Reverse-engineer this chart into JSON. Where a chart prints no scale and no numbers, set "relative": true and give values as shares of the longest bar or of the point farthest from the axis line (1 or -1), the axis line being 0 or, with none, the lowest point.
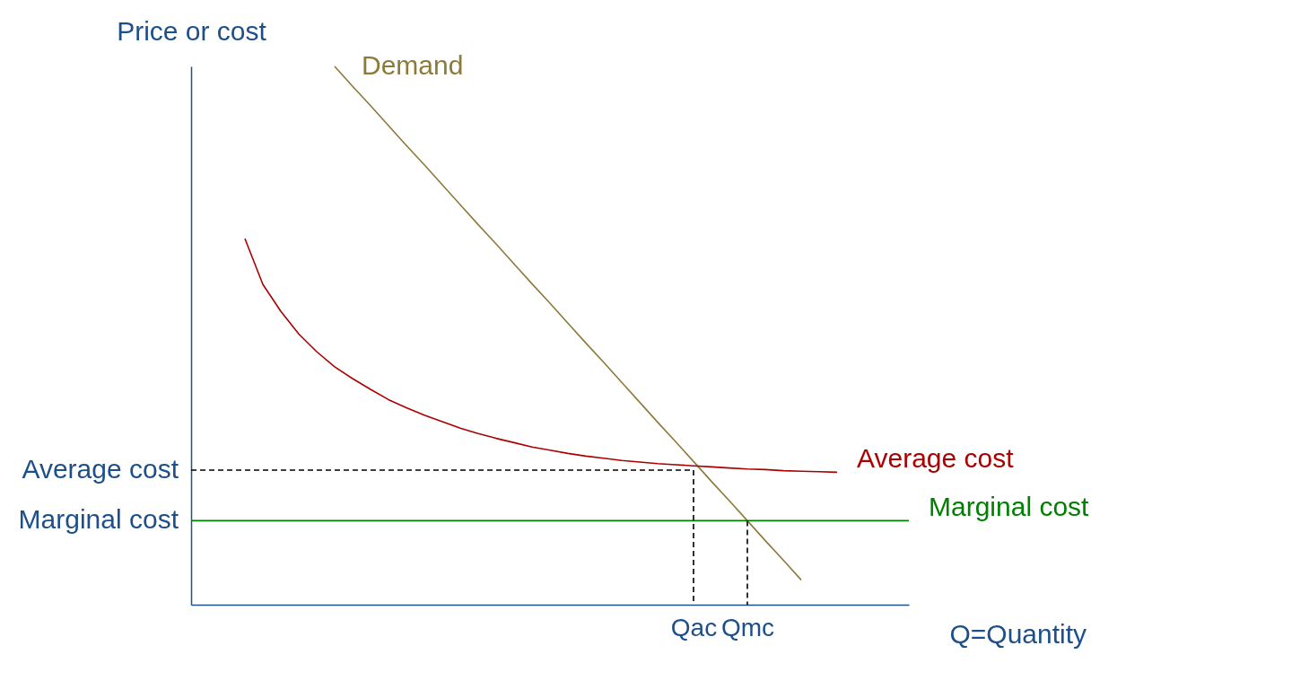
{
  "chart_data": {
    "type": "line",
    "relative": true,
    "xlabel": "Q=Quantity",
    "ylabel": "Price or cost",
    "tick_labels": "x",
    "categories": [
      null,
      null,
      null,
      null,
      null,
      null,
      null,
      null,
      null,
      null,
      null,
      null,
      null,
      null,
      null,
      null,
      null,
      null,
      null,
      null,
      null,
      null,
      null,
      null,
      null,
      null,
      null,
      null,
      "Qac",
      null,
      null,
      "Qmc",
      null,
      null,
      null,
      null,
      null,
      null,
      null,
      null,
      null
    ],
    "series": [
      {
        "name": "Demand",
        "color": "#8b7a3a",
        "values": [
          null,
          null,
          null,
          null,
          null,
          null,
          null,
          null,
          1.0,
          0.963,
          0.927,
          0.89,
          0.853,
          0.817,
          0.78,
          0.743,
          0.706,
          0.67,
          0.633,
          0.596,
          0.56,
          0.523,
          0.486,
          0.45,
          0.413,
          0.376,
          0.339,
          0.303,
          0.266,
          0.229,
          0.193,
          0.156,
          0.119,
          0.083,
          0.046,
          null,
          null,
          null,
          null,
          null,
          null
        ]
      },
      {
        "name": "Average cost",
        "color": "#aa0000",
        "values": [
          null,
          null,
          null,
          0.68,
          0.595,
          0.545,
          0.503,
          0.47,
          0.442,
          0.42,
          0.4,
          0.381,
          0.366,
          0.352,
          0.34,
          0.328,
          0.318,
          0.309,
          0.301,
          0.293,
          0.287,
          0.281,
          0.276,
          0.272,
          0.268,
          0.265,
          0.262,
          0.26,
          0.258,
          0.256,
          0.254,
          0.252,
          0.251,
          0.249,
          0.248,
          0.247,
          0.246,
          null,
          null,
          null,
          null
        ]
      },
      {
        "name": "Marginal cost",
        "color": "#008000",
        "values": [
          0.156,
          0.156,
          0.156,
          0.156,
          0.156,
          0.156,
          0.156,
          0.156,
          0.156,
          0.156,
          0.156,
          0.156,
          0.156,
          0.156,
          0.156,
          0.156,
          0.156,
          0.156,
          0.156,
          0.156,
          0.156,
          0.156,
          0.156,
          0.156,
          0.156,
          0.156,
          0.156,
          0.156,
          0.156,
          0.156,
          0.156,
          0.156,
          0.156,
          0.156,
          0.156,
          0.156,
          0.156,
          0.156,
          0.156,
          0.156,
          0.156
        ]
      },
      {
        "color": "#000000",
        "line_style": "dashed",
        "values": [
          0.25,
          0.25,
          0.25,
          0.25,
          0.25,
          0.25,
          0.25,
          0.25,
          0.25,
          0.25,
          0.25,
          0.25,
          0.25,
          0.25,
          0.25,
          0.25,
          0.25,
          0.25,
          0.25,
          0.25,
          0.25,
          0.25,
          0.25,
          0.25,
          0.25,
          0.25,
          0.25,
          0.25,
          0.25,
          null,
          null,
          null,
          null,
          null,
          null,
          null,
          null,
          null,
          null,
          null,
          null
        ]
      },
      {
        "color": "#000000",
        "line_style": "dashed",
        "x": [
          "Qac",
          "Qac"
        ],
        "values": [
          0.25,
          0
        ]
      },
      {
        "color": "#000000",
        "line_style": "dashed",
        "x": [
          "Qmc",
          "Qmc"
        ],
        "values": [
          0.156,
          0
        ]
      }
    ],
    "annotations": [
      "Average cost",
      "Marginal cost"
    ]
  }
}
